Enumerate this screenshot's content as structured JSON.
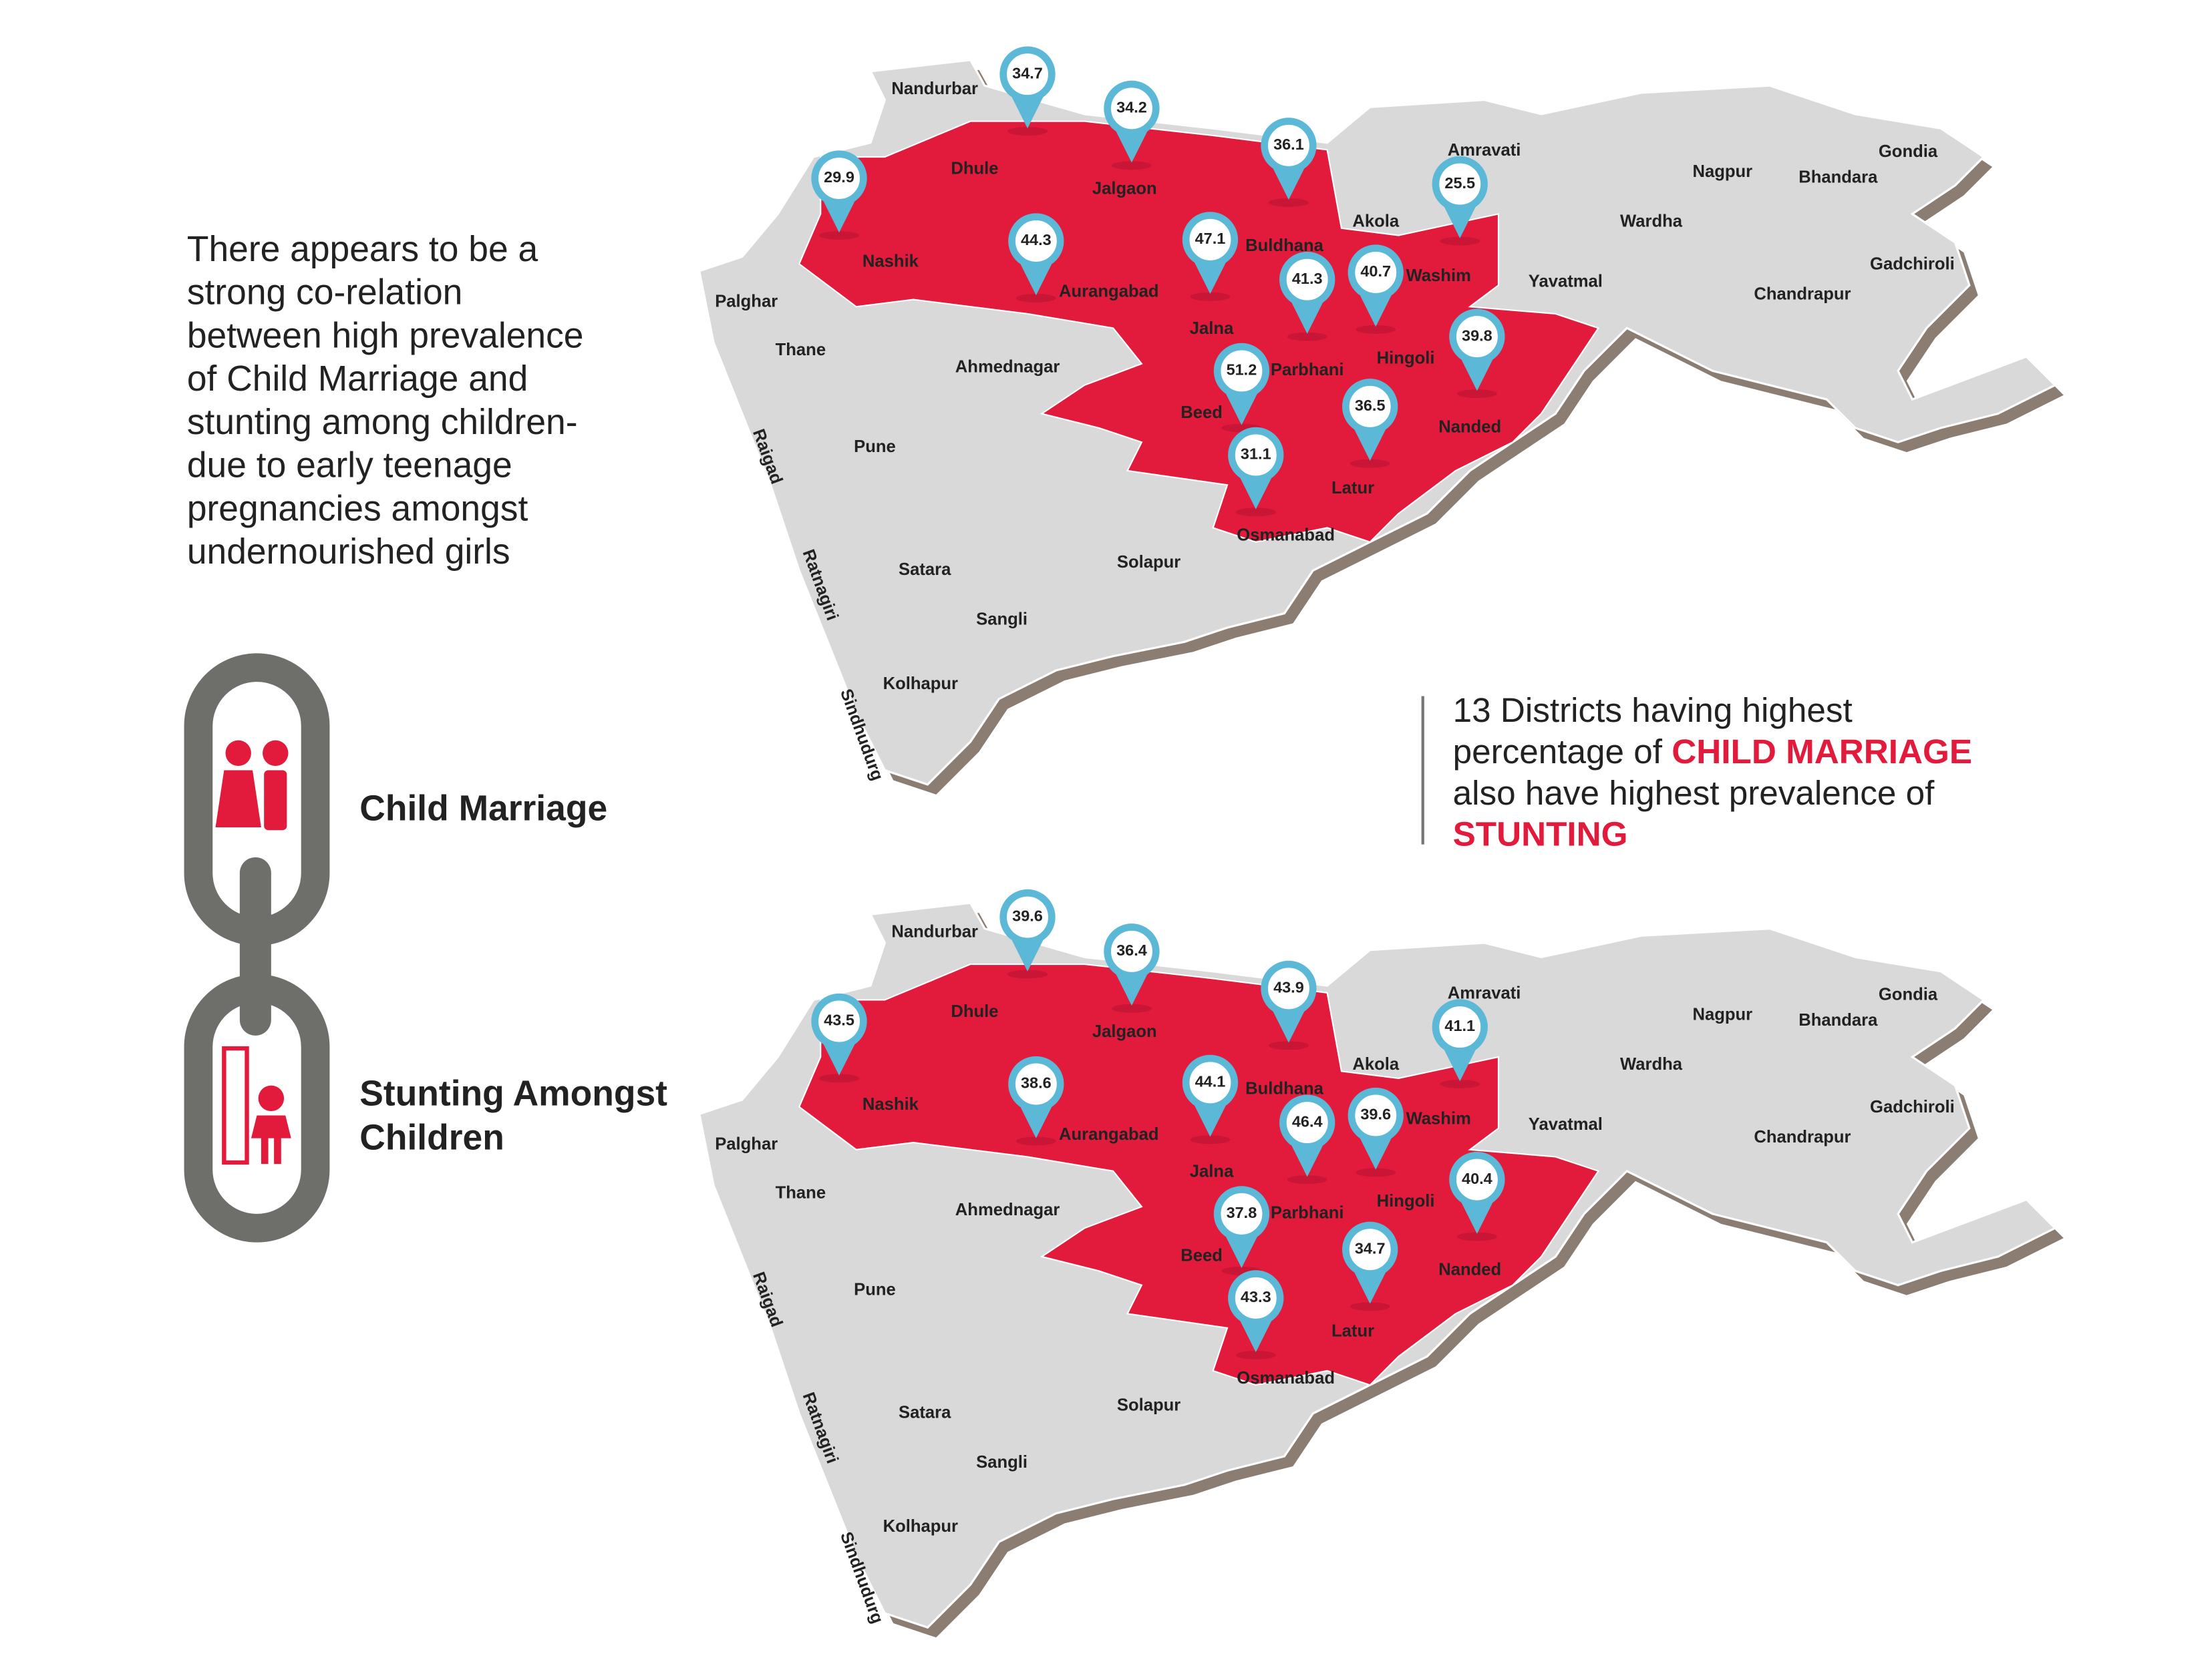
{
  "description": [
    "There appears to be a",
    "strong co-relation",
    "between high prevalence",
    "of Child Marriage and",
    "stunting among children-",
    "due to early teenage",
    "pregnancies amongst",
    "undernourished girls"
  ],
  "legend": [
    [
      "Child Marriage"
    ],
    [
      "Stunting Amongst",
      "Children"
    ]
  ],
  "callout": [
    [
      {
        "text": "13 Districts having highest"
      }
    ],
    [
      {
        "text": "percentage of "
      },
      {
        "text": "CHILD MARRIAGE",
        "highlight": true
      }
    ],
    [
      {
        "text": "also have highest prevalence of"
      }
    ],
    [
      {
        "text": "STUNTING",
        "highlight": true
      }
    ]
  ],
  "districts": [
    "Nandurbar",
    "Dhule",
    "Jalgaon",
    "Amravati",
    "Nagpur",
    "Gondia",
    "Bhandara",
    "Wardha",
    "Akola",
    "Buldhana",
    "Washim",
    "Yavatmal",
    "Gadchiroli",
    "Chandrapur",
    "Nashik",
    "Aurangabad",
    "Palghar",
    "Jalna",
    "Hingoli",
    "Thane",
    "Ahmednagar",
    "Parbhani",
    "Beed",
    "Nanded",
    "Pune",
    "Raigad",
    "Latur",
    "Osmanabad",
    "Satara",
    "Solapur",
    "Ratnagiri",
    "Sangli",
    "Kolhapur",
    "Sindhudurg"
  ],
  "maps": [
    {
      "values": [
        34.7,
        34.2,
        36.1,
        29.9,
        25.5,
        44.3,
        47.1,
        41.3,
        40.7,
        39.8,
        51.2,
        36.5,
        31.1
      ]
    },
    {
      "values": [
        39.6,
        36.4,
        43.9,
        43.5,
        41.1,
        38.6,
        44.1,
        46.4,
        39.6,
        40.4,
        37.8,
        34.7,
        43.3
      ]
    }
  ]
}
